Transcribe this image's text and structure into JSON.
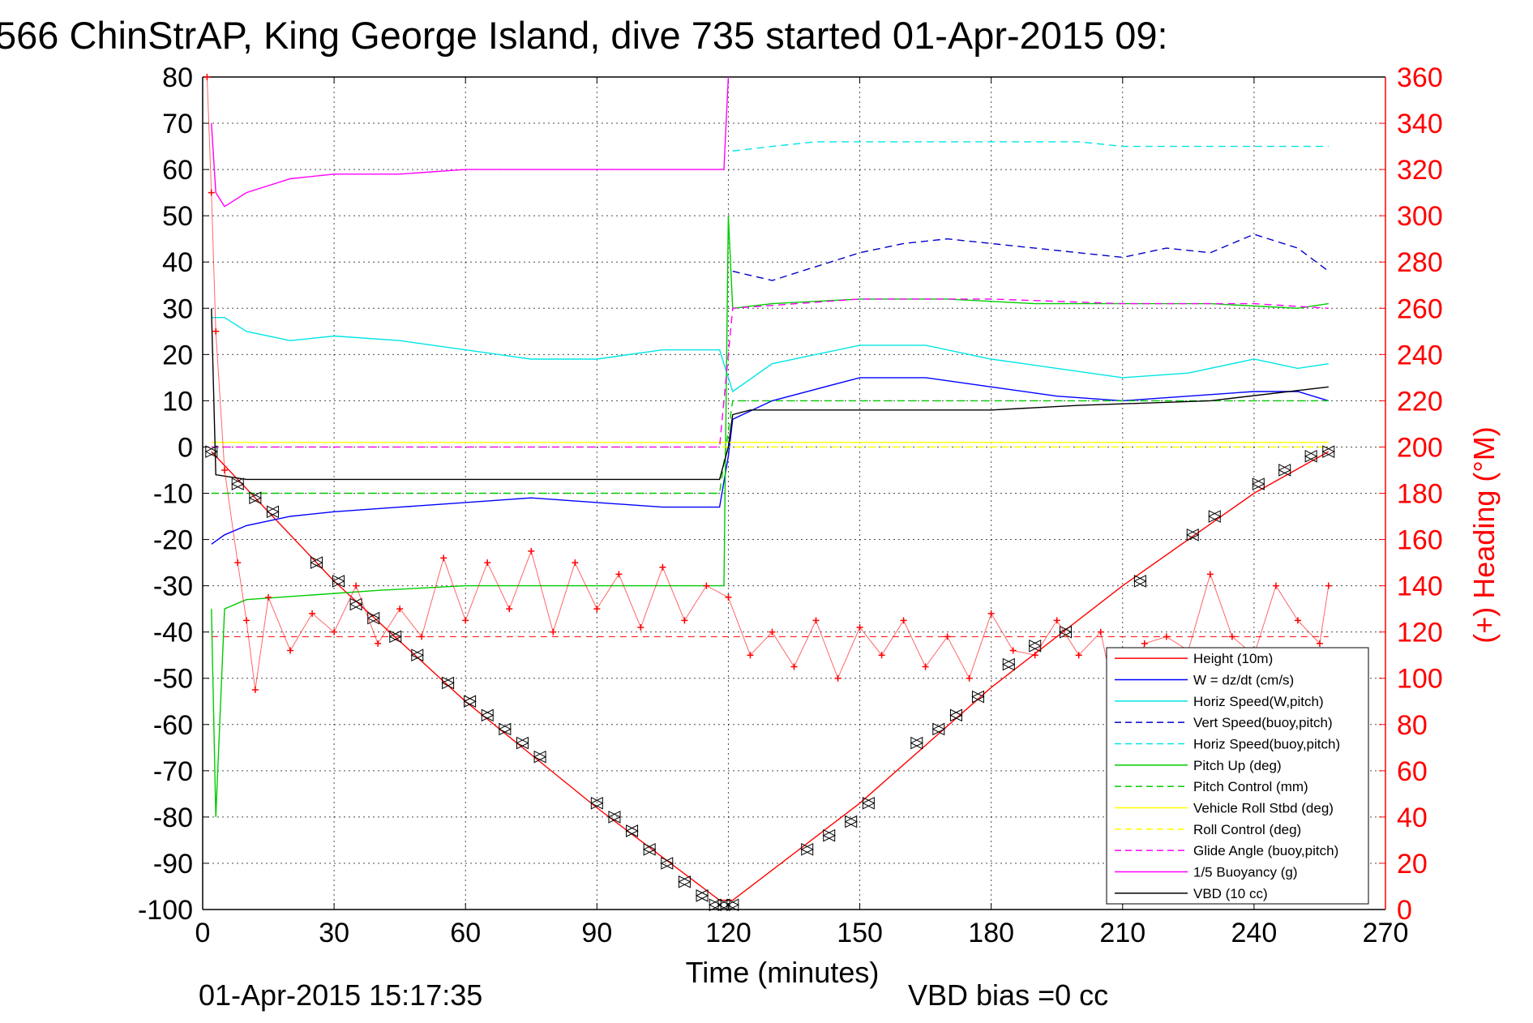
{
  "chart_data": {
    "type": "line",
    "title": "566 ChinStrAP, King George Island, dive 735 started 01-Apr-2015 09:",
    "xlabel": "Time (minutes)",
    "ylabel_right": "(+) Heading (°M)",
    "footer_left": "01-Apr-2015 15:17:35",
    "footer_right": "VBD bias =0 cc",
    "xlim": [
      0,
      270
    ],
    "ylim_left": [
      -100,
      80
    ],
    "ylim_right": [
      0,
      360
    ],
    "x_ticks": [
      "0",
      "30",
      "60",
      "90",
      "120",
      "150",
      "180",
      "210",
      "240",
      "270"
    ],
    "y_ticks_left": [
      "80",
      "70",
      "60",
      "50",
      "40",
      "30",
      "20",
      "10",
      "0",
      "-10",
      "-20",
      "-30",
      "-40",
      "-50",
      "-60",
      "-70",
      "-80",
      "-90",
      "-100"
    ],
    "y_ticks_right": [
      "360",
      "340",
      "320",
      "300",
      "280",
      "260",
      "240",
      "220",
      "200",
      "180",
      "160",
      "140",
      "120",
      "100",
      "80",
      "60",
      "40",
      "20",
      "0"
    ],
    "grid": true,
    "legend_position": "bottom-right",
    "heading_reference": 118,
    "series": [
      {
        "name": "Height (10m)",
        "color": "#ff0000",
        "style": "solid",
        "x": [
          2,
          10,
          30,
          60,
          90,
          118,
          121,
          150,
          180,
          210,
          240,
          257
        ],
        "y": [
          -1,
          -9,
          -29,
          -55,
          -78,
          -98,
          -98,
          -77,
          -52,
          -30,
          -10,
          -1
        ]
      },
      {
        "name": "W = dz/dt (cm/s)",
        "color": "#0000ff",
        "style": "solid",
        "x": [
          2,
          5,
          10,
          20,
          30,
          45,
          60,
          75,
          90,
          105,
          118,
          120,
          121,
          130,
          150,
          165,
          180,
          195,
          210,
          225,
          240,
          250,
          257
        ],
        "y": [
          -21,
          -19,
          -17,
          -15,
          -14,
          -13,
          -12,
          -11,
          -12,
          -13,
          -13,
          -2,
          6,
          10,
          15,
          15,
          13,
          11,
          10,
          11,
          12,
          12,
          10
        ]
      },
      {
        "name": "Horiz Speed(W,pitch)",
        "color": "#00e5e5",
        "style": "solid",
        "x": [
          2,
          5,
          10,
          20,
          30,
          45,
          60,
          75,
          90,
          105,
          118,
          120,
          121,
          130,
          150,
          165,
          180,
          195,
          210,
          225,
          240,
          250,
          257
        ],
        "y": [
          28,
          28,
          25,
          23,
          24,
          23,
          21,
          19,
          19,
          21,
          21,
          15,
          12,
          18,
          22,
          22,
          19,
          17,
          15,
          16,
          19,
          17,
          18
        ]
      },
      {
        "name": "Vert Speed(buoy,pitch)",
        "color": "#0000cc",
        "style": "dashed",
        "x": [
          121,
          130,
          140,
          150,
          160,
          170,
          180,
          190,
          200,
          210,
          220,
          230,
          240,
          250,
          257
        ],
        "y": [
          38,
          36,
          39,
          42,
          44,
          45,
          44,
          43,
          42,
          41,
          43,
          42,
          46,
          43,
          38
        ]
      },
      {
        "name": "Horiz Speed(buoy,pitch)",
        "color": "#00e5e5",
        "style": "dashed",
        "x": [
          121,
          130,
          140,
          150,
          160,
          170,
          180,
          190,
          200,
          210,
          220,
          230,
          240,
          250,
          257
        ],
        "y": [
          64,
          65,
          66,
          66,
          66,
          66,
          66,
          66,
          66,
          65,
          65,
          65,
          65,
          65,
          65
        ]
      },
      {
        "name": "Pitch Up (deg)",
        "color": "#00cc00",
        "style": "solid",
        "x": [
          2,
          3,
          5,
          10,
          25,
          40,
          60,
          90,
          118,
          119,
          120,
          121,
          130,
          150,
          170,
          190,
          210,
          230,
          250,
          257
        ],
        "y": [
          -35,
          -80,
          -35,
          -33,
          -32,
          -31,
          -30,
          -30,
          -30,
          -30,
          50,
          30,
          31,
          32,
          32,
          31,
          31,
          31,
          30,
          31
        ]
      },
      {
        "name": "Pitch Control (mm)",
        "color": "#00cc00",
        "style": "dashed",
        "x": [
          2,
          5,
          60,
          118,
          121,
          180,
          257
        ],
        "y": [
          -10,
          -10,
          -10,
          -10,
          10,
          10,
          10
        ]
      },
      {
        "name": "Vehicle Roll Stbd (deg)",
        "color": "#ffff00",
        "style": "solid",
        "x": [
          2,
          30,
          60,
          90,
          118,
          121,
          150,
          180,
          210,
          240,
          257
        ],
        "y": [
          1,
          1,
          1,
          1,
          1,
          1,
          1,
          1,
          1,
          1,
          1
        ]
      },
      {
        "name": "Roll Control (deg)",
        "color": "#ffff00",
        "style": "dashed",
        "x": [
          2,
          30,
          60,
          90,
          118,
          121,
          150,
          180,
          210,
          240,
          257
        ],
        "y": [
          0,
          0,
          0,
          0,
          0,
          0,
          0,
          0,
          0,
          0,
          0
        ]
      },
      {
        "name": "Glide Angle (buoy,pitch)",
        "color": "#ff00ff",
        "style": "dashed",
        "x": [
          2,
          60,
          118,
          121,
          150,
          180,
          210,
          240,
          257
        ],
        "y": [
          0,
          0,
          0,
          30,
          32,
          32,
          31,
          31,
          30
        ]
      },
      {
        "name": "1/5 Buoyancy (g)",
        "color": "#ff00ff",
        "style": "solid",
        "x": [
          2,
          3,
          5,
          10,
          20,
          30,
          45,
          60,
          90,
          118,
          119,
          120
        ],
        "y": [
          70,
          55,
          52,
          55,
          58,
          59,
          59,
          60,
          60,
          60,
          60,
          80
        ]
      },
      {
        "name": "VBD (10 cc)",
        "color": "#000000",
        "style": "solid",
        "x": [
          2,
          3,
          10,
          60,
          118,
          120,
          121,
          125,
          180,
          200,
          230,
          257
        ],
        "y": [
          30,
          -6,
          -7,
          -7,
          -7,
          0,
          7,
          8,
          8,
          9,
          10,
          13
        ]
      }
    ],
    "heading": {
      "name": "Heading",
      "color": "#ff0000",
      "axis": "right",
      "x": [
        1,
        2,
        3,
        5,
        8,
        10,
        12,
        15,
        20,
        25,
        30,
        35,
        40,
        45,
        50,
        55,
        60,
        65,
        70,
        75,
        80,
        85,
        90,
        95,
        100,
        105,
        110,
        115,
        120,
        125,
        130,
        135,
        140,
        145,
        150,
        155,
        160,
        165,
        170,
        175,
        180,
        185,
        190,
        195,
        200,
        205,
        210,
        215,
        220,
        225,
        230,
        235,
        240,
        245,
        250,
        255,
        257
      ],
      "y": [
        360,
        310,
        250,
        190,
        150,
        125,
        95,
        135,
        112,
        128,
        120,
        140,
        115,
        130,
        118,
        152,
        125,
        150,
        130,
        155,
        120,
        150,
        130,
        145,
        122,
        148,
        125,
        140,
        135,
        110,
        120,
        105,
        125,
        100,
        122,
        110,
        125,
        105,
        118,
        100,
        128,
        112,
        110,
        125,
        110,
        120,
        75,
        115,
        118,
        112,
        145,
        118,
        110,
        140,
        125,
        115,
        140
      ]
    },
    "depth_markers": {
      "x": [
        2,
        8,
        12,
        16,
        26,
        31,
        35,
        39,
        44,
        49,
        56,
        61,
        65,
        69,
        73,
        77,
        90,
        94,
        98,
        102,
        106,
        110,
        114,
        117,
        119,
        121,
        138,
        143,
        148,
        152,
        163,
        168,
        172,
        177,
        184,
        190,
        197,
        214,
        226,
        231,
        241,
        247,
        253,
        257
      ],
      "y": [
        -1,
        -8,
        -11,
        -14,
        -25,
        -29,
        -34,
        -37,
        -41,
        -45,
        -51,
        -55,
        -58,
        -61,
        -64,
        -67,
        -77,
        -80,
        -83,
        -87,
        -90,
        -94,
        -97,
        -99,
        -99,
        -99,
        -87,
        -84,
        -81,
        -77,
        -64,
        -61,
        -58,
        -54,
        -47,
        -43,
        -40,
        -29,
        -19,
        -15,
        -8,
        -5,
        -2,
        -1
      ]
    }
  }
}
